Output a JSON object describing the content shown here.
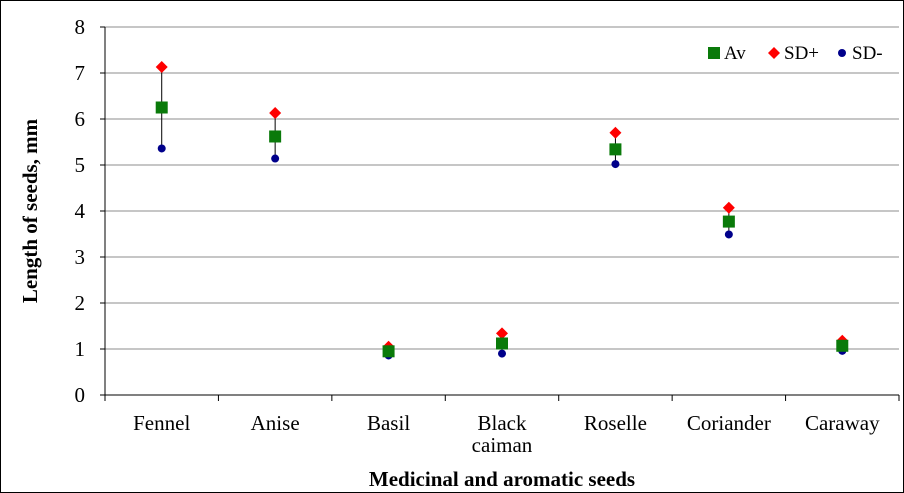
{
  "chart_data": {
    "type": "scatter",
    "title": "",
    "xlabel": "Medicinal and aromatic seeds",
    "ylabel": "Length of seeds, mm",
    "ylim": [
      0,
      8
    ],
    "yticks": [
      "0",
      "1",
      "2",
      "3",
      "4",
      "5",
      "6",
      "7",
      "8"
    ],
    "categories": [
      [
        "Fennel"
      ],
      [
        "Anise"
      ],
      [
        "Basil"
      ],
      [
        "Black",
        "caiman"
      ],
      [
        "Roselle"
      ],
      [
        "Coriander"
      ],
      [
        "Caraway"
      ]
    ],
    "grid": "horizontal",
    "legend_position": "top-right",
    "series": [
      {
        "name": "Av",
        "marker": "square",
        "color": "#0a7a0a",
        "values": [
          6.25,
          5.62,
          0.95,
          1.12,
          5.34,
          3.77,
          1.07
        ]
      },
      {
        "name": "SD+",
        "marker": "diamond",
        "color": "#ff0000",
        "values": [
          7.13,
          6.13,
          1.05,
          1.34,
          5.7,
          4.07,
          1.18
        ]
      },
      {
        "name": "SD-",
        "marker": "circle",
        "color": "#00008b",
        "values": [
          5.36,
          5.14,
          0.86,
          0.9,
          5.02,
          3.49,
          0.96
        ]
      }
    ]
  }
}
